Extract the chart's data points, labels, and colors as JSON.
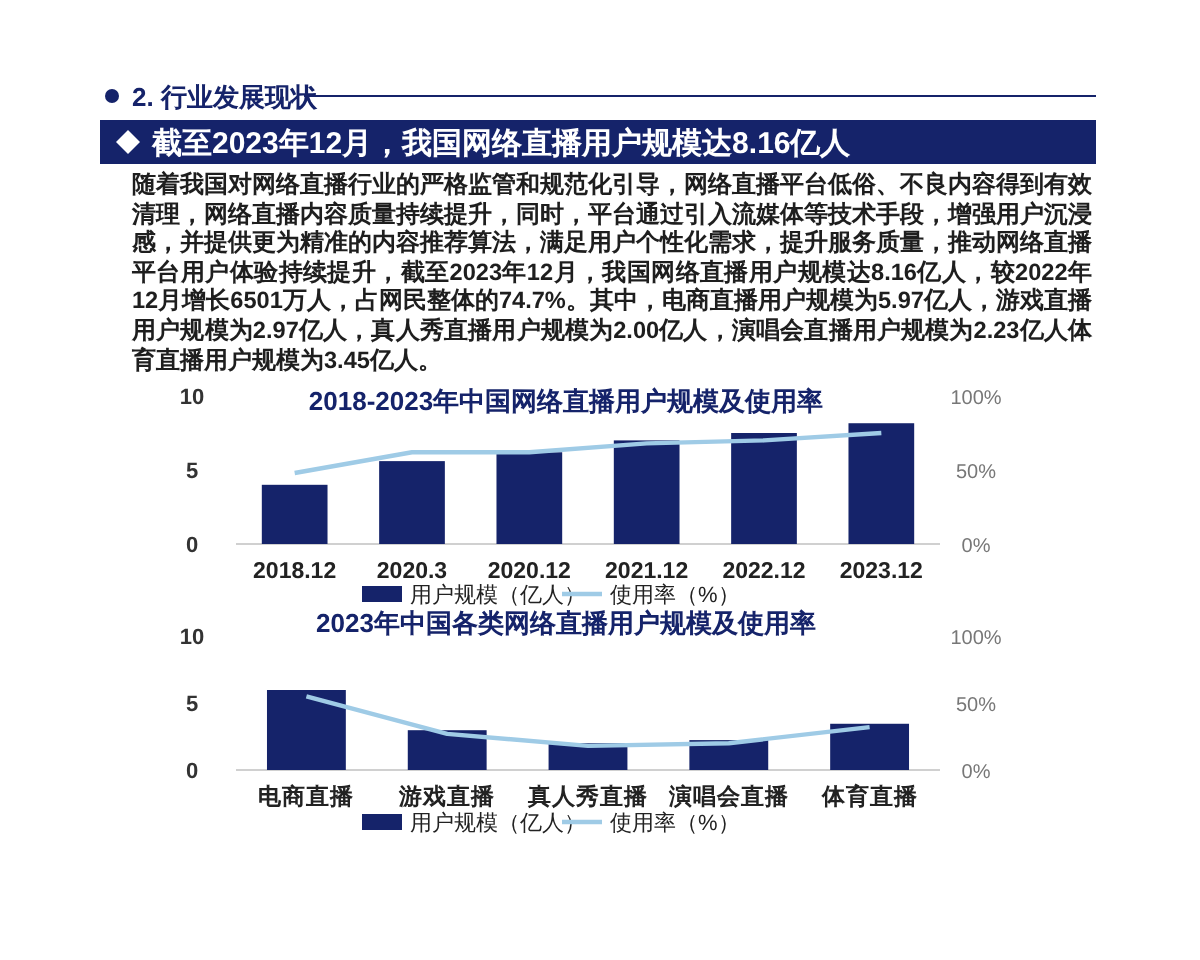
{
  "chart_data": [
    {
      "type": "other",
      "title": "2. 行业发展现状",
      "subtitle": "截至2023年12月，我国网络直播用户规模达8.16亿人",
      "annotations": [
        "随着我国对网络直播行业的严格监管和规范化引导，网络直播平台低俗、不良内容得到有效清理，网络直播内容质量持续提升，同时，平台通过引入流媒体等技术手段，增强用户沉浸感，并提供更为精准的内容推荐算法，满足用户个性化需求，提升服务质量，推动网络直播平台用户体验持续提升，截至2023年12月，我国网络直播用户规模达8.16亿人，较2022年12月增长6501万人，占网民整体的74.7%。其中，电商直播用户规模为5.97亿人，游戏直播用户规模为2.97亿人，真人秀直播用户规模为2.00亿人，演唱会直播用户规模为2.23亿人体育直播用户规模为3.45亿人。"
      ]
    },
    {
      "type": "bar",
      "title": "2018-2023年中国网络直播用户规模及使用率",
      "categories": [
        "2018.12",
        "2020.3",
        "2020.12",
        "2021.12",
        "2022.12",
        "2023.12"
      ],
      "series": [
        {
          "name": "用户规模（亿人）",
          "color": "#15236a",
          "values": [
            4.0,
            5.6,
            6.2,
            7.0,
            7.5,
            8.16
          ]
        },
        {
          "name": "使用率（%）",
          "type": "line",
          "axis": "y2",
          "color": "#9fcbe6",
          "values": [
            48,
            62,
            62,
            68,
            70,
            75
          ]
        }
      ],
      "ylim": [
        0,
        10
      ],
      "yticks": [
        0,
        5,
        10
      ],
      "y2lim": [
        0,
        100
      ],
      "y2ticks": [
        {
          "value": 0,
          "label": "0%"
        },
        {
          "value": 50,
          "label": "50%"
        },
        {
          "value": 100,
          "label": "100%"
        }
      ],
      "legend": "bottom"
    },
    {
      "type": "bar",
      "title": "2023年中国各类网络直播用户规模及使用率",
      "categories": [
        "电商直播",
        "游戏直播",
        "真人秀直播",
        "演唱会直播",
        "体育直播"
      ],
      "series": [
        {
          "name": "用户规模（亿人）",
          "color": "#15236a",
          "values": [
            5.97,
            2.97,
            2.0,
            2.23,
            3.45
          ]
        },
        {
          "name": "使用率（%）",
          "type": "line",
          "axis": "y2",
          "color": "#9fcbe6",
          "values": [
            55,
            27,
            18,
            20,
            32
          ]
        }
      ],
      "ylim": [
        0,
        10
      ],
      "yticks": [
        0,
        5,
        10
      ],
      "y2lim": [
        0,
        100
      ],
      "y2ticks": [
        {
          "value": 0,
          "label": "0%"
        },
        {
          "value": 50,
          "label": "50%"
        },
        {
          "value": 100,
          "label": "100%"
        }
      ],
      "legend": "bottom"
    }
  ]
}
